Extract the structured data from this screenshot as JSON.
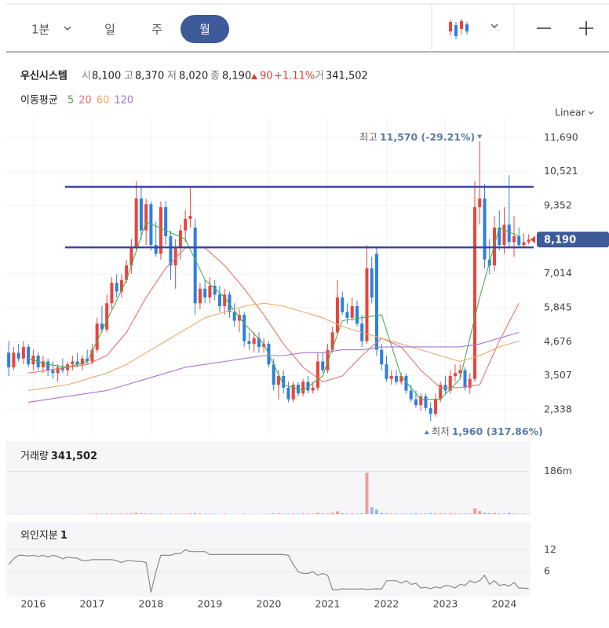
{
  "toolbar": {
    "intervals": [
      "1분",
      "일",
      "주",
      "월"
    ],
    "selected": 3
  },
  "header": {
    "name": "우신시스템",
    "open_label": "시",
    "open": "8,100",
    "high_label": "고",
    "high": "8,370",
    "low_label": "저",
    "low": "8,020",
    "close_label": "종",
    "close": "8,190",
    "change": "90",
    "change_pct": "+1.11%",
    "volume_label": "거",
    "volume": "341,502"
  },
  "ma_legend": {
    "title": "이동평균"
  },
  "chart_data": [
    {
      "type": "candlestick",
      "scale_label": "Linear",
      "xlim": [
        -0.5,
        107
      ],
      "ylim": [
        1450,
        12400
      ],
      "xticks": [
        {
          "value": 5,
          "label": "2016"
        },
        {
          "value": 17,
          "label": "2017"
        },
        {
          "value": 29,
          "label": "2018"
        },
        {
          "value": 41,
          "label": "2019"
        },
        {
          "value": 53,
          "label": "2020"
        },
        {
          "value": 65,
          "label": "2021"
        },
        {
          "value": 77,
          "label": "2022"
        },
        {
          "value": 89,
          "label": "2023"
        },
        {
          "value": 101,
          "label": "2024"
        }
      ],
      "yticks": [
        {
          "value": 2338,
          "label": "2,338"
        },
        {
          "value": 3507,
          "label": "3,507"
        },
        {
          "value": 4676,
          "label": "4,676"
        },
        {
          "value": 5845,
          "label": "5,845"
        },
        {
          "value": 7014,
          "label": "7,014"
        },
        {
          "value": 9352,
          "label": "9,352"
        },
        {
          "value": 10521,
          "label": "10,521"
        },
        {
          "value": 11690,
          "label": "11,690"
        }
      ],
      "up_color": "#e8453c",
      "down_color": "#2d7fe0",
      "candles": [
        [
          4300,
          4700,
          3500,
          3800
        ],
        [
          3800,
          4500,
          3700,
          4300
        ],
        [
          4300,
          4600,
          4000,
          4100
        ],
        [
          4100,
          4700,
          3900,
          4500
        ],
        [
          4500,
          4600,
          3800,
          3900
        ],
        [
          3900,
          4400,
          3700,
          4200
        ],
        [
          4200,
          4300,
          3700,
          3800
        ],
        [
          3800,
          4200,
          3600,
          4000
        ],
        [
          4000,
          4100,
          3500,
          3700
        ],
        [
          3700,
          4000,
          3400,
          3600
        ],
        [
          3600,
          3900,
          3300,
          3800
        ],
        [
          3800,
          4100,
          3600,
          3700
        ],
        [
          3700,
          4000,
          3500,
          3900
        ],
        [
          3900,
          4200,
          3700,
          4000
        ],
        [
          4000,
          4300,
          3800,
          3900
        ],
        [
          3900,
          4200,
          3700,
          4100
        ],
        [
          4100,
          4400,
          3900,
          4000
        ],
        [
          4000,
          4600,
          3900,
          4400
        ],
        [
          4400,
          5500,
          4300,
          5300
        ],
        [
          5300,
          5900,
          5000,
          5100
        ],
        [
          5100,
          6300,
          5000,
          6000
        ],
        [
          6000,
          6900,
          5800,
          6700
        ],
        [
          6700,
          7000,
          6200,
          6400
        ],
        [
          6400,
          7000,
          6200,
          6800
        ],
        [
          6800,
          7500,
          6700,
          7300
        ],
        [
          7300,
          8200,
          7000,
          7900
        ],
        [
          7900,
          10200,
          7800,
          9600
        ],
        [
          9600,
          10000,
          8200,
          8500
        ],
        [
          8500,
          9600,
          8000,
          9400
        ],
        [
          9400,
          9500,
          7800,
          8000
        ],
        [
          8000,
          8800,
          7600,
          7700
        ],
        [
          7700,
          9500,
          7500,
          9300
        ],
        [
          9300,
          9500,
          8000,
          8300
        ],
        [
          8300,
          8500,
          6800,
          7300
        ],
        [
          7300,
          8200,
          6500,
          7900
        ],
        [
          7900,
          8700,
          7500,
          8500
        ],
        [
          8500,
          9200,
          8100,
          8900
        ],
        [
          8900,
          10000,
          8600,
          9000
        ],
        [
          8600,
          8900,
          5600,
          6000
        ],
        [
          6000,
          6700,
          5800,
          6500
        ],
        [
          6500,
          6800,
          6000,
          6200
        ],
        [
          6200,
          6900,
          6000,
          6600
        ],
        [
          6600,
          6800,
          6100,
          6300
        ],
        [
          6300,
          6600,
          5700,
          5900
        ],
        [
          5900,
          6500,
          5600,
          6300
        ],
        [
          6300,
          6400,
          5500,
          5700
        ],
        [
          5700,
          6000,
          5200,
          5400
        ],
        [
          5400,
          5800,
          5000,
          5600
        ],
        [
          5600,
          5700,
          4500,
          4700
        ],
        [
          4700,
          5000,
          4400,
          4600
        ],
        [
          4600,
          5000,
          4300,
          4800
        ],
        [
          4800,
          5000,
          4300,
          4500
        ],
        [
          4500,
          4800,
          4300,
          4600
        ],
        [
          4600,
          4700,
          3800,
          3900
        ],
        [
          3900,
          4100,
          3000,
          3200
        ],
        [
          3200,
          3700,
          2700,
          3500
        ],
        [
          3500,
          3700,
          2900,
          3100
        ],
        [
          3100,
          3300,
          2600,
          2700
        ],
        [
          2700,
          3300,
          2600,
          3200
        ],
        [
          3200,
          3300,
          2800,
          2900
        ],
        [
          2900,
          3400,
          2800,
          3300
        ],
        [
          3300,
          3500,
          2900,
          3000
        ],
        [
          3000,
          3300,
          2900,
          3100
        ],
        [
          3100,
          4300,
          3000,
          4000
        ],
        [
          4000,
          4300,
          3600,
          3700
        ],
        [
          3700,
          4600,
          3600,
          4400
        ],
        [
          4400,
          5200,
          4300,
          5000
        ],
        [
          5000,
          6800,
          4900,
          6200
        ],
        [
          6200,
          6400,
          5600,
          5700
        ],
        [
          5700,
          6000,
          5300,
          5500
        ],
        [
          5500,
          6200,
          5400,
          5900
        ],
        [
          5900,
          6100,
          5200,
          5300
        ],
        [
          5300,
          5600,
          4500,
          4700
        ],
        [
          4700,
          8000,
          4600,
          7200
        ],
        [
          7200,
          7600,
          6000,
          6200
        ],
        [
          7700,
          7900,
          4200,
          4400
        ],
        [
          4400,
          4600,
          3700,
          3900
        ],
        [
          3900,
          4200,
          3300,
          3400
        ],
        [
          3400,
          3700,
          3200,
          3500
        ],
        [
          3500,
          3700,
          3200,
          3300
        ],
        [
          3300,
          3600,
          3200,
          3500
        ],
        [
          3500,
          3600,
          2900,
          3000
        ],
        [
          3000,
          3200,
          2600,
          2700
        ],
        [
          2700,
          3000,
          2400,
          2500
        ],
        [
          2500,
          2900,
          2300,
          2800
        ],
        [
          2800,
          2900,
          2300,
          2400
        ],
        [
          2400,
          2600,
          1960,
          2200
        ],
        [
          2200,
          2900,
          2100,
          2700
        ],
        [
          2700,
          3300,
          2600,
          3200
        ],
        [
          3200,
          3500,
          2900,
          3000
        ],
        [
          3000,
          3700,
          2900,
          3500
        ],
        [
          3500,
          3900,
          3300,
          3600
        ],
        [
          3600,
          3900,
          3400,
          3700
        ],
        [
          3700,
          3800,
          3000,
          3100
        ],
        [
          3100,
          3600,
          2900,
          3400
        ],
        [
          3400,
          10200,
          3300,
          9300
        ],
        [
          9300,
          11570,
          8700,
          9600
        ],
        [
          9600,
          10100,
          7200,
          7500
        ],
        [
          7500,
          8200,
          7000,
          7300
        ],
        [
          7300,
          9000,
          7100,
          8600
        ],
        [
          8600,
          9200,
          7800,
          8000
        ],
        [
          8000,
          9300,
          7700,
          8700
        ],
        [
          8700,
          10400,
          7900,
          8100
        ],
        [
          8100,
          9000,
          7600,
          8300
        ],
        [
          8300,
          8600,
          7900,
          8000
        ],
        [
          8000,
          8400,
          7900,
          8100
        ],
        [
          8100,
          8370,
          8020,
          8190
        ]
      ],
      "ma_x": [
        4,
        8,
        12,
        16,
        20,
        24,
        28,
        32,
        36,
        40,
        44,
        48,
        52,
        56,
        60,
        64,
        68,
        72,
        76,
        80,
        84,
        88,
        92,
        96,
        100,
        104
      ],
      "series": [
        {
          "name": "5",
          "color": "#4cae4c",
          "values": [
            4100,
            3900,
            3800,
            4000,
            5400,
            6800,
            8800,
            8500,
            8200,
            6800,
            6200,
            5300,
            4600,
            3200,
            3000,
            3500,
            5400,
            5500,
            5600,
            3500,
            2700,
            2700,
            3400,
            6200,
            8600,
            8300
          ]
        },
        {
          "name": "20",
          "color": "#e8736b",
          "values": [
            3600,
            3700,
            3800,
            3900,
            4200,
            5000,
            6200,
            7200,
            7900,
            7900,
            7300,
            6500,
            5600,
            4600,
            3800,
            3300,
            3500,
            4200,
            4800,
            4500,
            3700,
            3100,
            3100,
            3200,
            4700,
            6000
          ]
        },
        {
          "name": "60",
          "color": "#f0a868",
          "values": [
            3000,
            3100,
            3200,
            3400,
            3600,
            3900,
            4300,
            4700,
            5100,
            5500,
            5700,
            5900,
            6000,
            5900,
            5700,
            5500,
            5200,
            5000,
            4800,
            4600,
            4400,
            4200,
            4000,
            4200,
            4500,
            4700
          ]
        },
        {
          "name": "120",
          "color": "#a874d8",
          "values": [
            2600,
            2700,
            2800,
            2900,
            3000,
            3200,
            3400,
            3600,
            3800,
            3900,
            4000,
            4100,
            4200,
            4200,
            4300,
            4300,
            4400,
            4400,
            4500,
            4500,
            4500,
            4500,
            4500,
            4600,
            4800,
            5000
          ]
        }
      ],
      "hlines": {
        "color": "#3b44a8",
        "values": [
          10000,
          7920
        ]
      },
      "last": {
        "value": 8190,
        "label": "8,190",
        "color": "#3d5a99"
      },
      "max_note": {
        "prefix": "최고",
        "x": 96,
        "value": 11570,
        "label": "11,570 (-29.21%)"
      },
      "min_note": {
        "prefix": "최저",
        "x": 86,
        "value": 1960,
        "label": "1,960 (317.86%)"
      }
    },
    {
      "type": "bar",
      "title": "거래량",
      "title_value": "341,502",
      "ylim": [
        0,
        300
      ],
      "yticks": [
        {
          "value": 186,
          "label": "186m"
        }
      ],
      "values": [
        1,
        1,
        1,
        1,
        1,
        1,
        1,
        1,
        1,
        1,
        1,
        1,
        1,
        1,
        1,
        1,
        1,
        2,
        3,
        2,
        3,
        3,
        2,
        2,
        3,
        4,
        6,
        4,
        3,
        3,
        2,
        3,
        2,
        3,
        2,
        2,
        2,
        4,
        5,
        3,
        2,
        2,
        2,
        1,
        2,
        1,
        1,
        1,
        2,
        1,
        1,
        1,
        1,
        2,
        4,
        3,
        2,
        2,
        3,
        2,
        4,
        3,
        3,
        6,
        3,
        4,
        6,
        12,
        4,
        3,
        3,
        2,
        4,
        180,
        30,
        20,
        6,
        4,
        3,
        3,
        2,
        3,
        3,
        4,
        3,
        3,
        5,
        4,
        4,
        3,
        4,
        3,
        3,
        3,
        3,
        25,
        14,
        6,
        4,
        5,
        3,
        3,
        6,
        3,
        2,
        2,
        1
      ]
    },
    {
      "type": "line",
      "title": "외인지분",
      "title_value": "1",
      "color": "#8a8a8a",
      "ylim": [
        0,
        19
      ],
      "yticks": [
        6,
        12
      ],
      "values": [
        8,
        9.5,
        10.5,
        10.5,
        10.3,
        10.5,
        10.2,
        10.5,
        10,
        10.5,
        10.2,
        9.5,
        10,
        9.8,
        9.7,
        9,
        9,
        9.3,
        9.3,
        9.3,
        9.3,
        9.3,
        9,
        8.5,
        9,
        9,
        8.8,
        8.8,
        8.5,
        0.3,
        6,
        10.5,
        10.5,
        10.5,
        11,
        11,
        12,
        11.5,
        11.5,
        11.5,
        11.5,
        10.7,
        10.7,
        10.7,
        10.7,
        10.7,
        10.7,
        10.7,
        10.7,
        10.7,
        10.7,
        10.7,
        10.7,
        10.7,
        10.7,
        10.7,
        10.7,
        10.5,
        8,
        6,
        5.5,
        5.5,
        6,
        5,
        5.5,
        5,
        1,
        1,
        1.3,
        1.2,
        1.2,
        1.2,
        1.3,
        1.1,
        1.2,
        1.3,
        1.2,
        3.5,
        3.5,
        3.5,
        2.8,
        3.5,
        2.5,
        2.8,
        1.5,
        1.7,
        1.3,
        1.8,
        1.5,
        2.2,
        2,
        1.5,
        2.5,
        2.2,
        3.5,
        3,
        3.5,
        5,
        2.5,
        3.5,
        2.2,
        2.5,
        2,
        3,
        1.5,
        1.5,
        1.3
      ]
    }
  ]
}
